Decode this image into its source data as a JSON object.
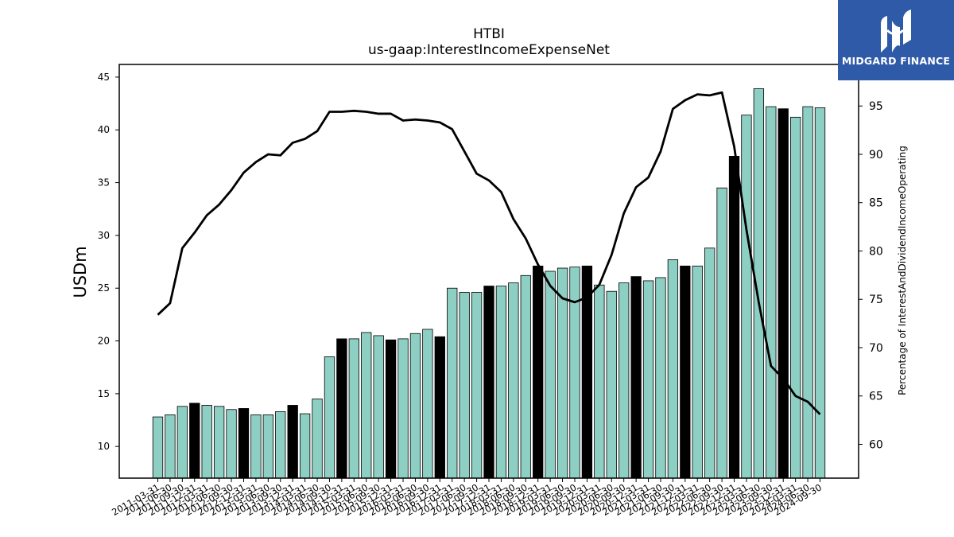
{
  "brand": {
    "name": "MIDGARD FINANCE",
    "background": "#2f5aa8"
  },
  "chart_data": {
    "type": "bar",
    "title": "HTBI",
    "subtitle": "us-gaap:InterestIncomeExpenseNet",
    "ylabel": "USDm",
    "y2label": "Percentage of InterestAndDividendIncomeOperating",
    "ylim": [
      7.0,
      46.2
    ],
    "y2lim": [
      56.5,
      99.3
    ],
    "yticks": [
      10,
      15,
      20,
      25,
      30,
      35,
      40,
      45
    ],
    "y2ticks": [
      60,
      65,
      70,
      75,
      80,
      85,
      90,
      95
    ],
    "grid": false,
    "colors": {
      "bar": "#8ecfc4",
      "bar_highlight": "#000000",
      "line": "#000000"
    },
    "categories": [
      "2011-03-31",
      "2011-06-30",
      "2011-09-30",
      "2011-12-31",
      "2012-03-31",
      "2012-06-30",
      "2012-09-30",
      "2012-12-31",
      "2013-03-31",
      "2013-06-30",
      "2013-09-30",
      "2013-12-31",
      "2014-03-31",
      "2014-06-30",
      "2014-09-30",
      "2014-12-31",
      "2015-03-31",
      "2015-06-30",
      "2015-09-30",
      "2015-12-31",
      "2016-03-31",
      "2016-06-30",
      "2016-09-30",
      "2016-12-31",
      "2017-03-31",
      "2017-06-30",
      "2017-09-30",
      "2017-12-31",
      "2018-03-31",
      "2018-06-30",
      "2018-09-30",
      "2018-12-31",
      "2019-03-31",
      "2019-06-30",
      "2019-09-30",
      "2019-12-31",
      "2020-03-31",
      "2020-06-30",
      "2020-09-30",
      "2020-12-31",
      "2021-03-31",
      "2021-06-30",
      "2021-09-30",
      "2021-12-31",
      "2022-03-31",
      "2022-06-30",
      "2022-09-30",
      "2022-12-31",
      "2023-03-31",
      "2023-06-30",
      "2023-09-30",
      "2023-12-31",
      "2024-03-31",
      "2024-06-30",
      "2024-09-30"
    ],
    "series": [
      {
        "kind": "bar",
        "axis": "left",
        "values": [
          12.8,
          13.0,
          13.8,
          14.1,
          13.9,
          13.8,
          13.5,
          13.6,
          13.0,
          13.0,
          13.3,
          13.9,
          13.1,
          14.5,
          18.5,
          20.2,
          20.2,
          20.8,
          20.5,
          20.1,
          20.2,
          20.7,
          21.1,
          20.4,
          25.0,
          24.6,
          24.6,
          25.2,
          25.2,
          25.5,
          26.2,
          27.1,
          26.6,
          26.9,
          27.0,
          27.1,
          25.3,
          24.7,
          25.5,
          26.1,
          25.7,
          26.0,
          27.7,
          27.1,
          27.1,
          28.8,
          34.5,
          37.5,
          41.4,
          43.9,
          42.2,
          42.0,
          41.2,
          42.2,
          42.1
        ],
        "highlight": [
          false,
          false,
          false,
          true,
          false,
          false,
          false,
          true,
          false,
          false,
          false,
          true,
          false,
          false,
          false,
          true,
          false,
          false,
          false,
          true,
          false,
          false,
          false,
          true,
          false,
          false,
          false,
          true,
          false,
          false,
          false,
          true,
          false,
          false,
          false,
          true,
          false,
          false,
          false,
          true,
          false,
          false,
          false,
          true,
          false,
          false,
          false,
          true,
          false,
          false,
          false,
          true,
          false,
          false,
          false
        ]
      },
      {
        "kind": "line",
        "axis": "right",
        "values": [
          73.4,
          74.6,
          80.3,
          81.9,
          83.7,
          84.8,
          86.3,
          88.1,
          89.2,
          90.0,
          89.9,
          91.2,
          91.6,
          92.4,
          94.4,
          94.4,
          94.5,
          94.4,
          94.2,
          94.2,
          93.5,
          93.6,
          93.5,
          93.3,
          92.6,
          90.3,
          88.0,
          87.3,
          86.1,
          83.3,
          81.3,
          78.6,
          76.4,
          75.1,
          74.7,
          75.2,
          76.5,
          79.6,
          83.9,
          86.6,
          87.6,
          90.3,
          94.7,
          95.6,
          96.2,
          96.1,
          96.4,
          90.8,
          82.2,
          74.7,
          68.1,
          66.8,
          65.0,
          64.4,
          63.1
        ]
      }
    ]
  }
}
